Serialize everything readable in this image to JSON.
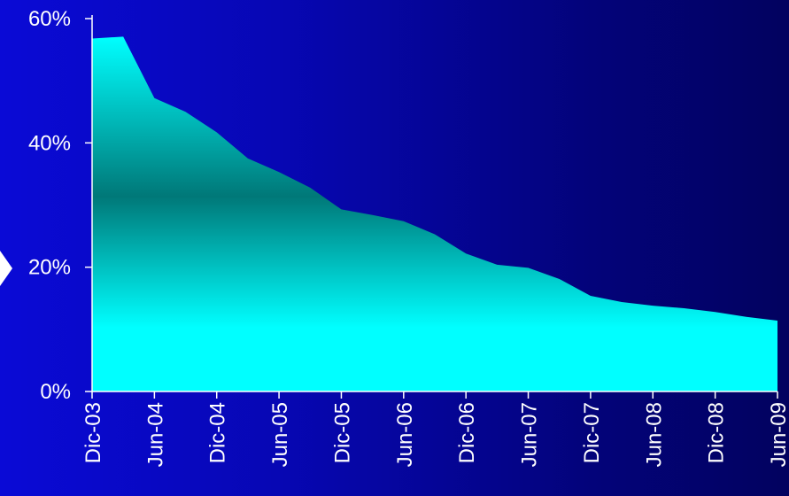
{
  "colors": {
    "background_left": "#0a0ad6",
    "background_right": "#02025f",
    "area_light": "#00ffff",
    "area_dark": "#007878",
    "axis": "#ffffff",
    "text": "#ffffff"
  },
  "chart_data": {
    "type": "area",
    "title": "",
    "xlabel": "",
    "ylabel": "",
    "ylim": [
      0,
      60
    ],
    "y_ticks": [
      0,
      20,
      40,
      60
    ],
    "y_tick_labels": [
      "0%",
      "20%",
      "40%",
      "60%"
    ],
    "grid": false,
    "legend": "none",
    "x_tick_labels": [
      "Dic-03",
      "Jun-04",
      "Dic-04",
      "Jun-05",
      "Dic-05",
      "Jun-06",
      "Dic-06",
      "Jun-07",
      "Dic-07",
      "Jun-08",
      "Dic-08",
      "Jun-09"
    ],
    "series": [
      {
        "x": [
          "Dic-03",
          "Mar-04",
          "Jun-04",
          "Sep-04",
          "Dic-04",
          "Mar-05",
          "Jun-05",
          "Sep-05",
          "Dic-05",
          "Mar-06",
          "Jun-06",
          "Sep-06",
          "Dic-06",
          "Mar-07",
          "Jun-07",
          "Sep-07",
          "Dic-07",
          "Mar-08",
          "Jun-08",
          "Sep-08",
          "Dic-08",
          "Mar-09",
          "Jun-09"
        ],
        "values": [
          56.8,
          57.1,
          47.2,
          45.0,
          41.7,
          37.5,
          35.3,
          32.8,
          29.3,
          28.4,
          27.4,
          25.3,
          22.2,
          20.4,
          19.9,
          18.1,
          15.4,
          14.4,
          13.8,
          13.4,
          12.8,
          12.0,
          11.4
        ]
      }
    ]
  }
}
